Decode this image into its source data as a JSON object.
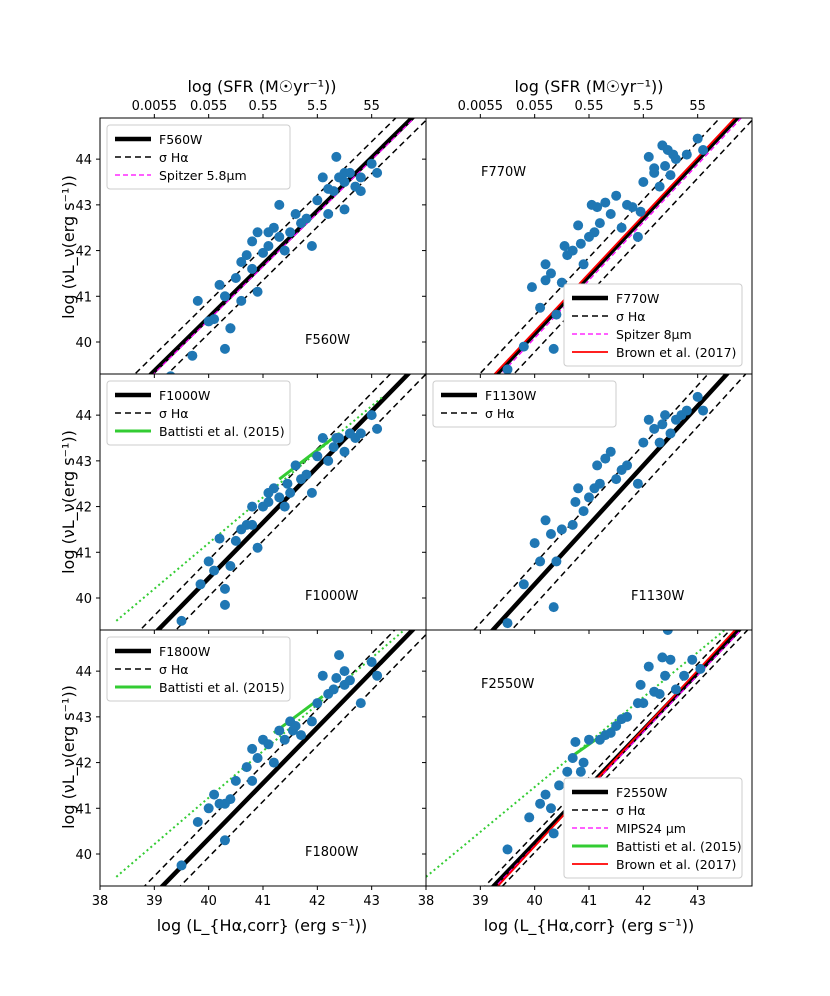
{
  "figure": {
    "xlabel": "log (L_{Hα,corr} (erg s⁻¹))",
    "ylabel": "log (νL_ν(erg s⁻¹))",
    "top_xlabel": "log (SFR (M☉yr⁻¹))",
    "top_ticks": [
      "0.0055",
      "0.055",
      "0.55",
      "5.5",
      "55"
    ],
    "colors": {
      "points": "#1f77b4",
      "fit": "#000000",
      "spitzer": "#ff00ff",
      "battisti": "#33cc33",
      "brown": "#ff0000"
    }
  },
  "chart_data": [
    {
      "type": "scatter",
      "panel_label": "F560W",
      "xlim": [
        38,
        44
      ],
      "ylim": [
        39.3,
        44.9
      ],
      "xticks": [
        38,
        39,
        40,
        41,
        42,
        43
      ],
      "yticks": [
        40,
        41,
        42,
        43,
        44
      ],
      "legend_position": "upper-left",
      "label_position": "lower-right",
      "legend": [
        "F560W",
        "σ Hα",
        "Spitzer 5.8μm"
      ],
      "points": [
        [
          39.3,
          39.25
        ],
        [
          39.7,
          39.7
        ],
        [
          39.8,
          40.9
        ],
        [
          40.0,
          40.45
        ],
        [
          40.1,
          40.5
        ],
        [
          40.2,
          41.25
        ],
        [
          40.3,
          41.0
        ],
        [
          40.3,
          39.85
        ],
        [
          40.4,
          40.3
        ],
        [
          40.4,
          40.3
        ],
        [
          40.5,
          41.4
        ],
        [
          40.6,
          41.75
        ],
        [
          40.7,
          41.9
        ],
        [
          40.8,
          41.6
        ],
        [
          40.8,
          42.2
        ],
        [
          40.9,
          41.1
        ],
        [
          41.0,
          41.95
        ],
        [
          41.1,
          42.4
        ],
        [
          41.1,
          42.1
        ],
        [
          41.2,
          42.5
        ],
        [
          41.3,
          42.3
        ],
        [
          41.4,
          42.0
        ],
        [
          41.5,
          42.4
        ],
        [
          41.6,
          42.8
        ],
        [
          41.7,
          42.6
        ],
        [
          41.8,
          42.7
        ],
        [
          41.9,
          42.1
        ],
        [
          42.0,
          43.1
        ],
        [
          42.1,
          43.6
        ],
        [
          42.2,
          42.8
        ],
        [
          42.3,
          43.3
        ],
        [
          42.4,
          43.6
        ],
        [
          42.5,
          43.5
        ],
        [
          42.5,
          42.9
        ],
        [
          42.6,
          43.7
        ],
        [
          42.7,
          43.4
        ],
        [
          42.8,
          43.3
        ],
        [
          43.0,
          43.9
        ],
        [
          43.1,
          43.7
        ],
        [
          42.35,
          44.05
        ],
        [
          42.2,
          43.35
        ],
        [
          40.6,
          40.9
        ],
        [
          40.9,
          42.4
        ],
        [
          41.3,
          43.0
        ],
        [
          42.5,
          43.7
        ],
        [
          42.8,
          43.6
        ]
      ],
      "fit": [
        [
          38.0,
          38.2
        ],
        [
          44.0,
          45.2
        ]
      ],
      "sigma_offset": 0.35,
      "extra_lines": [
        {
          "name": "Spitzer 5.8μm",
          "style": "spitzer",
          "dashed": true,
          "line": [
            [
              38.0,
              38.15
            ],
            [
              44.0,
              45.15
            ]
          ]
        }
      ]
    },
    {
      "type": "scatter",
      "panel_label": "F770W",
      "xlim": [
        38,
        44
      ],
      "ylim": [
        39.3,
        44.9
      ],
      "xticks": [
        38,
        39,
        40,
        41,
        42,
        43
      ],
      "yticks": [
        40,
        41,
        42,
        43,
        44
      ],
      "legend_position": "lower-right",
      "label_position": "upper-left",
      "legend": [
        "F770W",
        "σ Hα",
        "Spitzer 8μm",
        "Brown et al. (2017)"
      ],
      "points": [
        [
          39.5,
          39.4
        ],
        [
          39.8,
          39.9
        ],
        [
          39.95,
          41.2
        ],
        [
          40.1,
          40.75
        ],
        [
          40.2,
          41.35
        ],
        [
          40.2,
          41.7
        ],
        [
          40.3,
          41.5
        ],
        [
          40.35,
          39.85
        ],
        [
          40.4,
          40.6
        ],
        [
          40.5,
          41.3
        ],
        [
          40.6,
          41.9
        ],
        [
          40.7,
          42.0
        ],
        [
          40.8,
          42.55
        ],
        [
          40.85,
          42.15
        ],
        [
          40.9,
          41.7
        ],
        [
          41.0,
          42.3
        ],
        [
          41.1,
          42.4
        ],
        [
          41.15,
          42.95
        ],
        [
          41.2,
          42.6
        ],
        [
          41.3,
          43.05
        ],
        [
          41.4,
          42.8
        ],
        [
          41.5,
          43.2
        ],
        [
          41.6,
          42.5
        ],
        [
          41.7,
          43.0
        ],
        [
          41.8,
          42.95
        ],
        [
          41.9,
          42.3
        ],
        [
          42.0,
          43.5
        ],
        [
          42.1,
          44.05
        ],
        [
          42.2,
          43.8
        ],
        [
          42.3,
          43.4
        ],
        [
          42.35,
          44.3
        ],
        [
          42.4,
          43.85
        ],
        [
          42.5,
          43.65
        ],
        [
          42.55,
          44.1
        ],
        [
          42.6,
          44.0
        ],
        [
          42.8,
          44.1
        ],
        [
          43.0,
          44.45
        ],
        [
          43.1,
          44.2
        ],
        [
          42.2,
          43.7
        ],
        [
          41.95,
          42.85
        ],
        [
          40.55,
          42.1
        ],
        [
          41.05,
          43.0
        ],
        [
          42.45,
          44.2
        ]
      ],
      "fit": [
        [
          38.0,
          37.65
        ],
        [
          44.0,
          45.25
        ]
      ],
      "sigma_offset": 0.4,
      "extra_lines": [
        {
          "name": "Spitzer 8μm",
          "style": "spitzer",
          "dashed": true,
          "line": [
            [
              38.0,
              37.55
            ],
            [
              44.0,
              45.15
            ]
          ]
        },
        {
          "name": "Brown et al. (2017)",
          "style": "brown",
          "dashed": false,
          "line": [
            [
              38.0,
              37.7
            ],
            [
              44.0,
              45.3
            ]
          ]
        }
      ]
    },
    {
      "type": "scatter",
      "panel_label": "F1000W",
      "xlim": [
        38,
        44
      ],
      "ylim": [
        39.3,
        44.9
      ],
      "xticks": [
        38,
        39,
        40,
        41,
        42,
        43
      ],
      "yticks": [
        40,
        41,
        42,
        43,
        44
      ],
      "legend_position": "upper-left",
      "label_position": "lower-right",
      "legend": [
        "F1000W",
        "σ Hα",
        "Battisti et al. (2015)"
      ],
      "points": [
        [
          39.5,
          39.5
        ],
        [
          39.85,
          40.3
        ],
        [
          40.0,
          40.8
        ],
        [
          40.1,
          40.6
        ],
        [
          40.2,
          41.3
        ],
        [
          40.3,
          40.2
        ],
        [
          40.3,
          39.85
        ],
        [
          40.4,
          40.7
        ],
        [
          40.5,
          41.25
        ],
        [
          40.7,
          41.6
        ],
        [
          40.8,
          41.6
        ],
        [
          40.8,
          42.0
        ],
        [
          40.9,
          41.1
        ],
        [
          41.0,
          42.0
        ],
        [
          41.1,
          42.3
        ],
        [
          41.1,
          42.1
        ],
        [
          41.2,
          42.4
        ],
        [
          41.3,
          42.2
        ],
        [
          41.4,
          42.0
        ],
        [
          41.5,
          42.3
        ],
        [
          41.6,
          42.9
        ],
        [
          41.7,
          42.6
        ],
        [
          41.8,
          42.7
        ],
        [
          41.9,
          42.3
        ],
        [
          42.0,
          43.1
        ],
        [
          42.1,
          43.5
        ],
        [
          42.2,
          43.0
        ],
        [
          42.3,
          43.3
        ],
        [
          42.4,
          43.5
        ],
        [
          42.5,
          43.2
        ],
        [
          42.6,
          43.6
        ],
        [
          42.7,
          43.5
        ],
        [
          42.8,
          43.6
        ],
        [
          43.0,
          44.0
        ],
        [
          43.1,
          43.7
        ],
        [
          42.35,
          43.5
        ],
        [
          41.45,
          42.5
        ],
        [
          40.6,
          41.5
        ]
      ],
      "fit": [
        [
          38.0,
          38.0
        ],
        [
          44.0,
          45.3
        ]
      ],
      "sigma_offset": 0.4,
      "extra_lines": [
        {
          "name": "Battisti et al. (2015)",
          "style": "battisti",
          "dashed": false,
          "line": [
            [
              41.3,
              42.6
            ],
            [
              42.4,
              43.6
            ]
          ]
        },
        {
          "name": "Battisti dotted",
          "style": "battisti",
          "dotted": true,
          "line": [
            [
              38.3,
              39.5
            ],
            [
              43.2,
              44.4
            ]
          ]
        }
      ]
    },
    {
      "type": "scatter",
      "panel_label": "F1130W",
      "xlim": [
        38,
        44
      ],
      "ylim": [
        39.3,
        44.9
      ],
      "xticks": [
        38,
        39,
        40,
        41,
        42,
        43
      ],
      "yticks": [
        40,
        41,
        42,
        43,
        44
      ],
      "legend_position": "upper-left",
      "label_position": "lower-right",
      "legend": [
        "F1130W",
        "σ Hα"
      ],
      "points": [
        [
          39.5,
          39.45
        ],
        [
          39.8,
          40.3
        ],
        [
          40.0,
          41.2
        ],
        [
          40.1,
          40.8
        ],
        [
          40.2,
          41.7
        ],
        [
          40.3,
          41.4
        ],
        [
          40.35,
          39.8
        ],
        [
          40.4,
          40.8
        ],
        [
          40.5,
          41.5
        ],
        [
          40.7,
          41.6
        ],
        [
          40.75,
          42.1
        ],
        [
          40.8,
          42.4
        ],
        [
          40.9,
          41.9
        ],
        [
          41.0,
          42.2
        ],
        [
          41.1,
          42.4
        ],
        [
          41.15,
          42.9
        ],
        [
          41.2,
          42.5
        ],
        [
          41.3,
          43.05
        ],
        [
          41.4,
          43.2
        ],
        [
          41.5,
          42.6
        ],
        [
          41.6,
          42.8
        ],
        [
          41.7,
          42.9
        ],
        [
          41.9,
          42.5
        ],
        [
          42.0,
          43.4
        ],
        [
          42.1,
          43.9
        ],
        [
          42.2,
          43.7
        ],
        [
          42.3,
          43.4
        ],
        [
          42.4,
          44.0
        ],
        [
          42.5,
          43.6
        ],
        [
          42.6,
          43.9
        ],
        [
          42.7,
          44.0
        ],
        [
          42.8,
          44.1
        ],
        [
          43.0,
          44.4
        ],
        [
          43.1,
          44.1
        ],
        [
          42.35,
          43.8
        ]
      ],
      "fit": [
        [
          38.0,
          37.7
        ],
        [
          44.0,
          45.5
        ]
      ],
      "sigma_offset": 0.45,
      "extra_lines": []
    },
    {
      "type": "scatter",
      "panel_label": "F1800W",
      "xlim": [
        38,
        44
      ],
      "ylim": [
        39.3,
        44.9
      ],
      "xticks": [
        38,
        39,
        40,
        41,
        42,
        43
      ],
      "yticks": [
        40,
        41,
        42,
        43,
        44
      ],
      "legend_position": "upper-left",
      "label_position": "lower-right",
      "legend": [
        "F1800W",
        "σ Hα",
        "Battisti et al. (2015)"
      ],
      "points": [
        [
          39.5,
          39.75
        ],
        [
          39.8,
          40.7
        ],
        [
          40.0,
          41.0
        ],
        [
          40.1,
          41.3
        ],
        [
          40.2,
          41.1
        ],
        [
          40.3,
          40.3
        ],
        [
          40.3,
          41.1
        ],
        [
          40.4,
          41.2
        ],
        [
          40.5,
          41.6
        ],
        [
          40.7,
          41.9
        ],
        [
          40.8,
          42.3
        ],
        [
          40.8,
          41.6
        ],
        [
          40.9,
          42.1
        ],
        [
          41.0,
          42.5
        ],
        [
          41.1,
          42.4
        ],
        [
          41.2,
          42.0
        ],
        [
          41.3,
          42.7
        ],
        [
          41.4,
          42.5
        ],
        [
          41.5,
          42.9
        ],
        [
          41.6,
          42.8
        ],
        [
          41.7,
          42.6
        ],
        [
          41.9,
          42.9
        ],
        [
          42.0,
          43.3
        ],
        [
          42.1,
          43.9
        ],
        [
          42.2,
          43.5
        ],
        [
          42.3,
          43.6
        ],
        [
          42.4,
          44.35
        ],
        [
          42.5,
          44.0
        ],
        [
          42.5,
          43.7
        ],
        [
          42.6,
          43.8
        ],
        [
          42.8,
          43.3
        ],
        [
          43.0,
          44.2
        ],
        [
          43.1,
          43.9
        ],
        [
          42.35,
          43.85
        ],
        [
          41.55,
          42.7
        ]
      ],
      "fit": [
        [
          38.0,
          37.9
        ],
        [
          44.0,
          45.2
        ]
      ],
      "sigma_offset": 0.4,
      "extra_lines": [
        {
          "name": "Battisti et al. (2015)",
          "style": "battisti",
          "dashed": false,
          "line": [
            [
              41.2,
              42.65
            ],
            [
              42.1,
              43.45
            ]
          ]
        },
        {
          "name": "Battisti dotted",
          "style": "battisti",
          "dotted": true,
          "line": [
            [
              38.3,
              39.5
            ],
            [
              43.6,
              44.9
            ]
          ]
        }
      ]
    },
    {
      "type": "scatter",
      "panel_label": "F2550W",
      "xlim": [
        38,
        44
      ],
      "ylim": [
        39.3,
        44.9
      ],
      "xticks": [
        38,
        39,
        40,
        41,
        42,
        43
      ],
      "yticks": [
        40,
        41,
        42,
        43,
        44
      ],
      "legend_position": "lower-right",
      "label_position": "upper-left",
      "legend": [
        "F2550W",
        "σ Hα",
        "MIPS24 μm",
        "Battisti et al. (2015)",
        "Brown et al. (2017)"
      ],
      "points": [
        [
          39.5,
          40.1
        ],
        [
          39.9,
          40.8
        ],
        [
          40.1,
          41.1
        ],
        [
          40.2,
          41.3
        ],
        [
          40.3,
          41.0
        ],
        [
          40.35,
          40.45
        ],
        [
          40.45,
          41.5
        ],
        [
          40.6,
          41.8
        ],
        [
          40.7,
          42.1
        ],
        [
          40.75,
          42.45
        ],
        [
          40.85,
          41.8
        ],
        [
          40.9,
          42.0
        ],
        [
          41.0,
          42.5
        ],
        [
          41.2,
          42.5
        ],
        [
          41.3,
          42.6
        ],
        [
          41.4,
          42.65
        ],
        [
          41.5,
          42.8
        ],
        [
          41.6,
          42.95
        ],
        [
          41.7,
          43.0
        ],
        [
          41.9,
          43.3
        ],
        [
          42.0,
          43.3
        ],
        [
          42.1,
          44.1
        ],
        [
          42.2,
          43.55
        ],
        [
          42.3,
          43.5
        ],
        [
          42.35,
          44.3
        ],
        [
          42.4,
          43.9
        ],
        [
          42.5,
          44.25
        ],
        [
          42.6,
          43.6
        ],
        [
          42.75,
          43.9
        ],
        [
          42.9,
          44.25
        ],
        [
          43.05,
          44.05
        ],
        [
          42.45,
          44.9
        ],
        [
          41.95,
          43.7
        ]
      ],
      "fit": [
        [
          38.0,
          37.75
        ],
        [
          44.0,
          45.2
        ]
      ],
      "sigma_offset": 0.2,
      "extra_lines": [
        {
          "name": "MIPS24 μm",
          "style": "spitzer",
          "dashed": true,
          "line": [
            [
              38.0,
              37.7
            ],
            [
              44.0,
              45.15
            ]
          ]
        },
        {
          "name": "Brown et al. (2017)",
          "style": "brown",
          "dashed": false,
          "line": [
            [
              38.0,
              37.6
            ],
            [
              44.0,
              45.3
            ]
          ]
        },
        {
          "name": "Battisti et al. (2015)",
          "style": "battisti",
          "dashed": false,
          "line": [
            [
              40.7,
              42.15
            ],
            [
              41.6,
              42.9
            ]
          ]
        },
        {
          "name": "Battisti dotted",
          "style": "battisti",
          "dotted": true,
          "line": [
            [
              38.0,
              39.5
            ],
            [
              43.6,
              45.0
            ]
          ]
        }
      ]
    }
  ]
}
